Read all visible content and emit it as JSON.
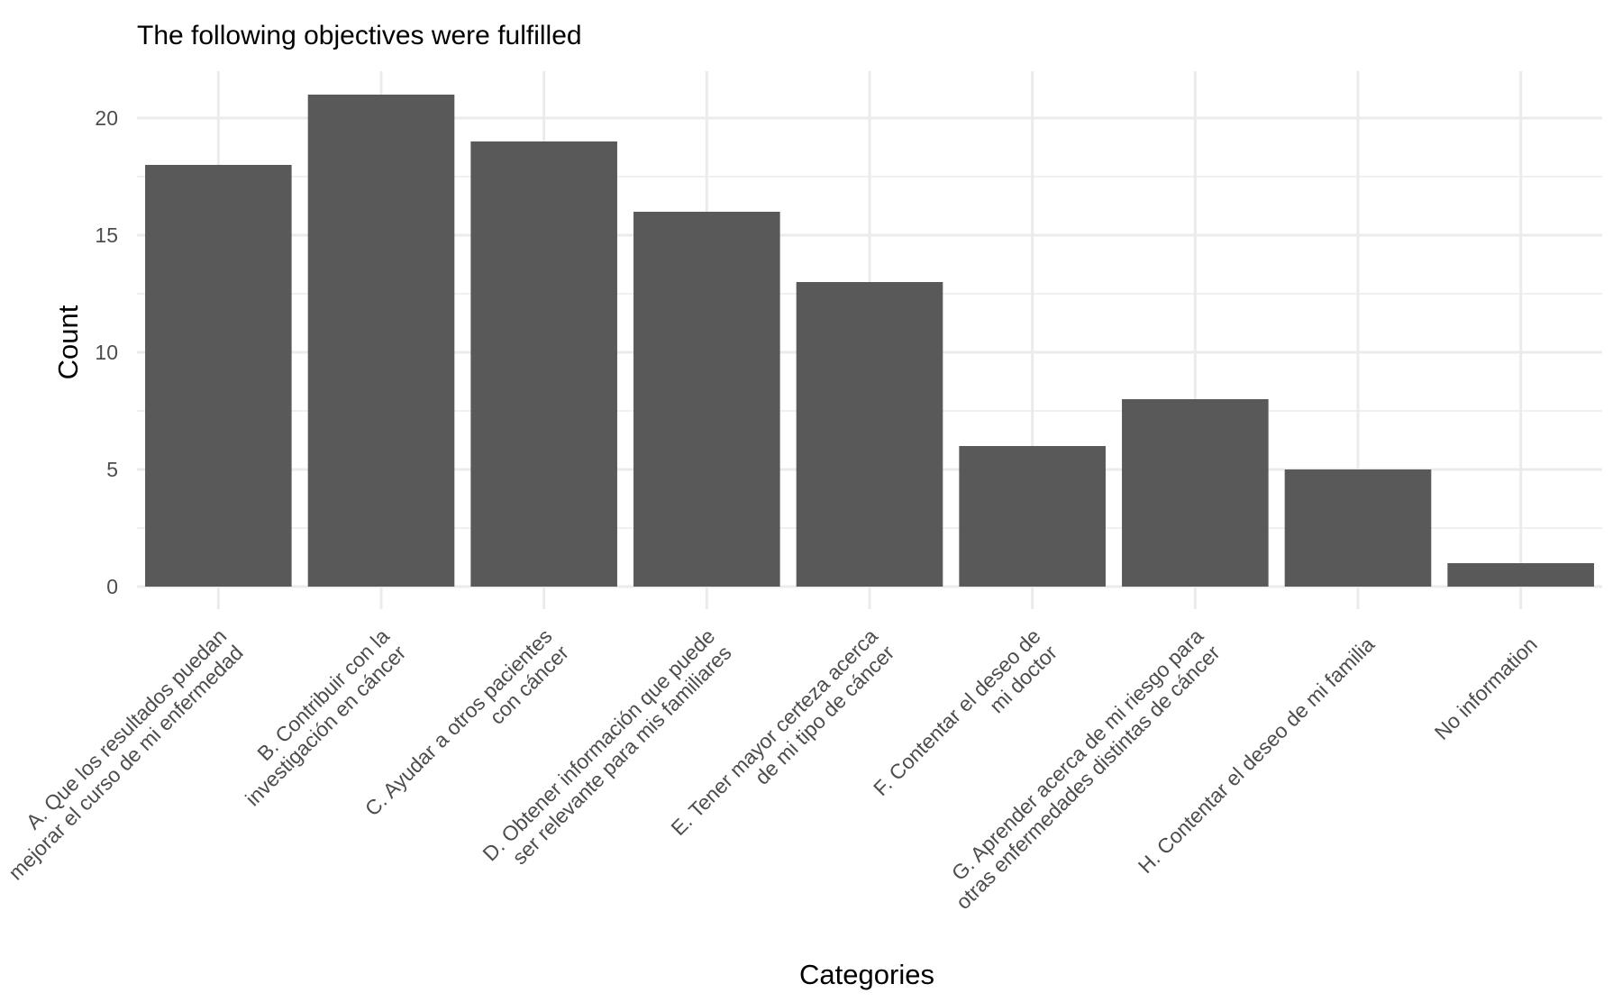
{
  "chart_data": {
    "type": "bar",
    "title": "The following objectives were fulfilled",
    "xlabel": "Categories",
    "ylabel": "Count",
    "ylim": [
      0,
      22
    ],
    "yticks": [
      0,
      5,
      10,
      15,
      20
    ],
    "grid": true,
    "categories": [
      [
        "A. Que los resultados puedan",
        "mejorar el curso de mi enfermedad"
      ],
      [
        "B. Contribuir con la",
        "investigación en cáncer"
      ],
      [
        "C. Ayudar a otros pacientes",
        "con cáncer"
      ],
      [
        "D. Obtener información que puede",
        "ser relevante para mis familiares"
      ],
      [
        "E. Tener mayor certeza acerca",
        "de mi tipo de cáncer"
      ],
      [
        "F. Contentar el deseo de",
        "mi doctor"
      ],
      [
        "G. Aprender acerca de mi riesgo para",
        "otras enfermedades distintas de cáncer"
      ],
      [
        "H. Contentar el deseo de mi familia"
      ],
      [
        "No information"
      ]
    ],
    "values": [
      18,
      21,
      19,
      16,
      13,
      6,
      8,
      5,
      1
    ],
    "bar_color": "#595959",
    "grid_color": "#ebebeb"
  }
}
